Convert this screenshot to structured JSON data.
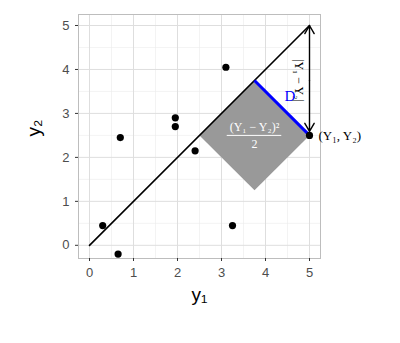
{
  "chart_data": {
    "type": "scatter",
    "x_label": "y₁",
    "y_label": "y₂",
    "x": [
      0.3,
      0.65,
      0.7,
      1.95,
      1.95,
      2.4,
      3.1,
      3.25,
      5
    ],
    "y": [
      0.45,
      -0.2,
      2.45,
      2.9,
      2.7,
      2.15,
      4.05,
      0.45,
      2.5
    ],
    "color": "#000000",
    "xlim": [
      -0.25,
      5.25
    ],
    "ylim": [
      -0.3,
      5.25
    ],
    "xticks": [
      0,
      1,
      2,
      3,
      4,
      5
    ],
    "yticks": [
      0,
      1,
      2,
      3,
      4,
      5
    ],
    "grid": true,
    "line": {
      "x": [
        0,
        5
      ],
      "y": [
        0,
        5
      ],
      "color": "#000000"
    },
    "square": {
      "x": [
        5,
        3.75,
        2.5,
        3.75
      ],
      "y": [
        2.5,
        3.75,
        2.5,
        1.25
      ],
      "color": "#999999",
      "label_numerator": "(Y₁ − Y₂)²",
      "label_denominator": "2"
    },
    "segment": {
      "x": [
        3.75,
        5
      ],
      "y": [
        3.75,
        2.5
      ],
      "color": "#0000ff",
      "label": "D"
    },
    "arrow": {
      "x": 5,
      "y": [
        5,
        2.5
      ],
      "color": "#000000",
      "label": "|Y₁ − Y₂|"
    },
    "point_label": {
      "x": 5,
      "y": 2.5,
      "text": "(Y₁, Y₂)"
    }
  }
}
